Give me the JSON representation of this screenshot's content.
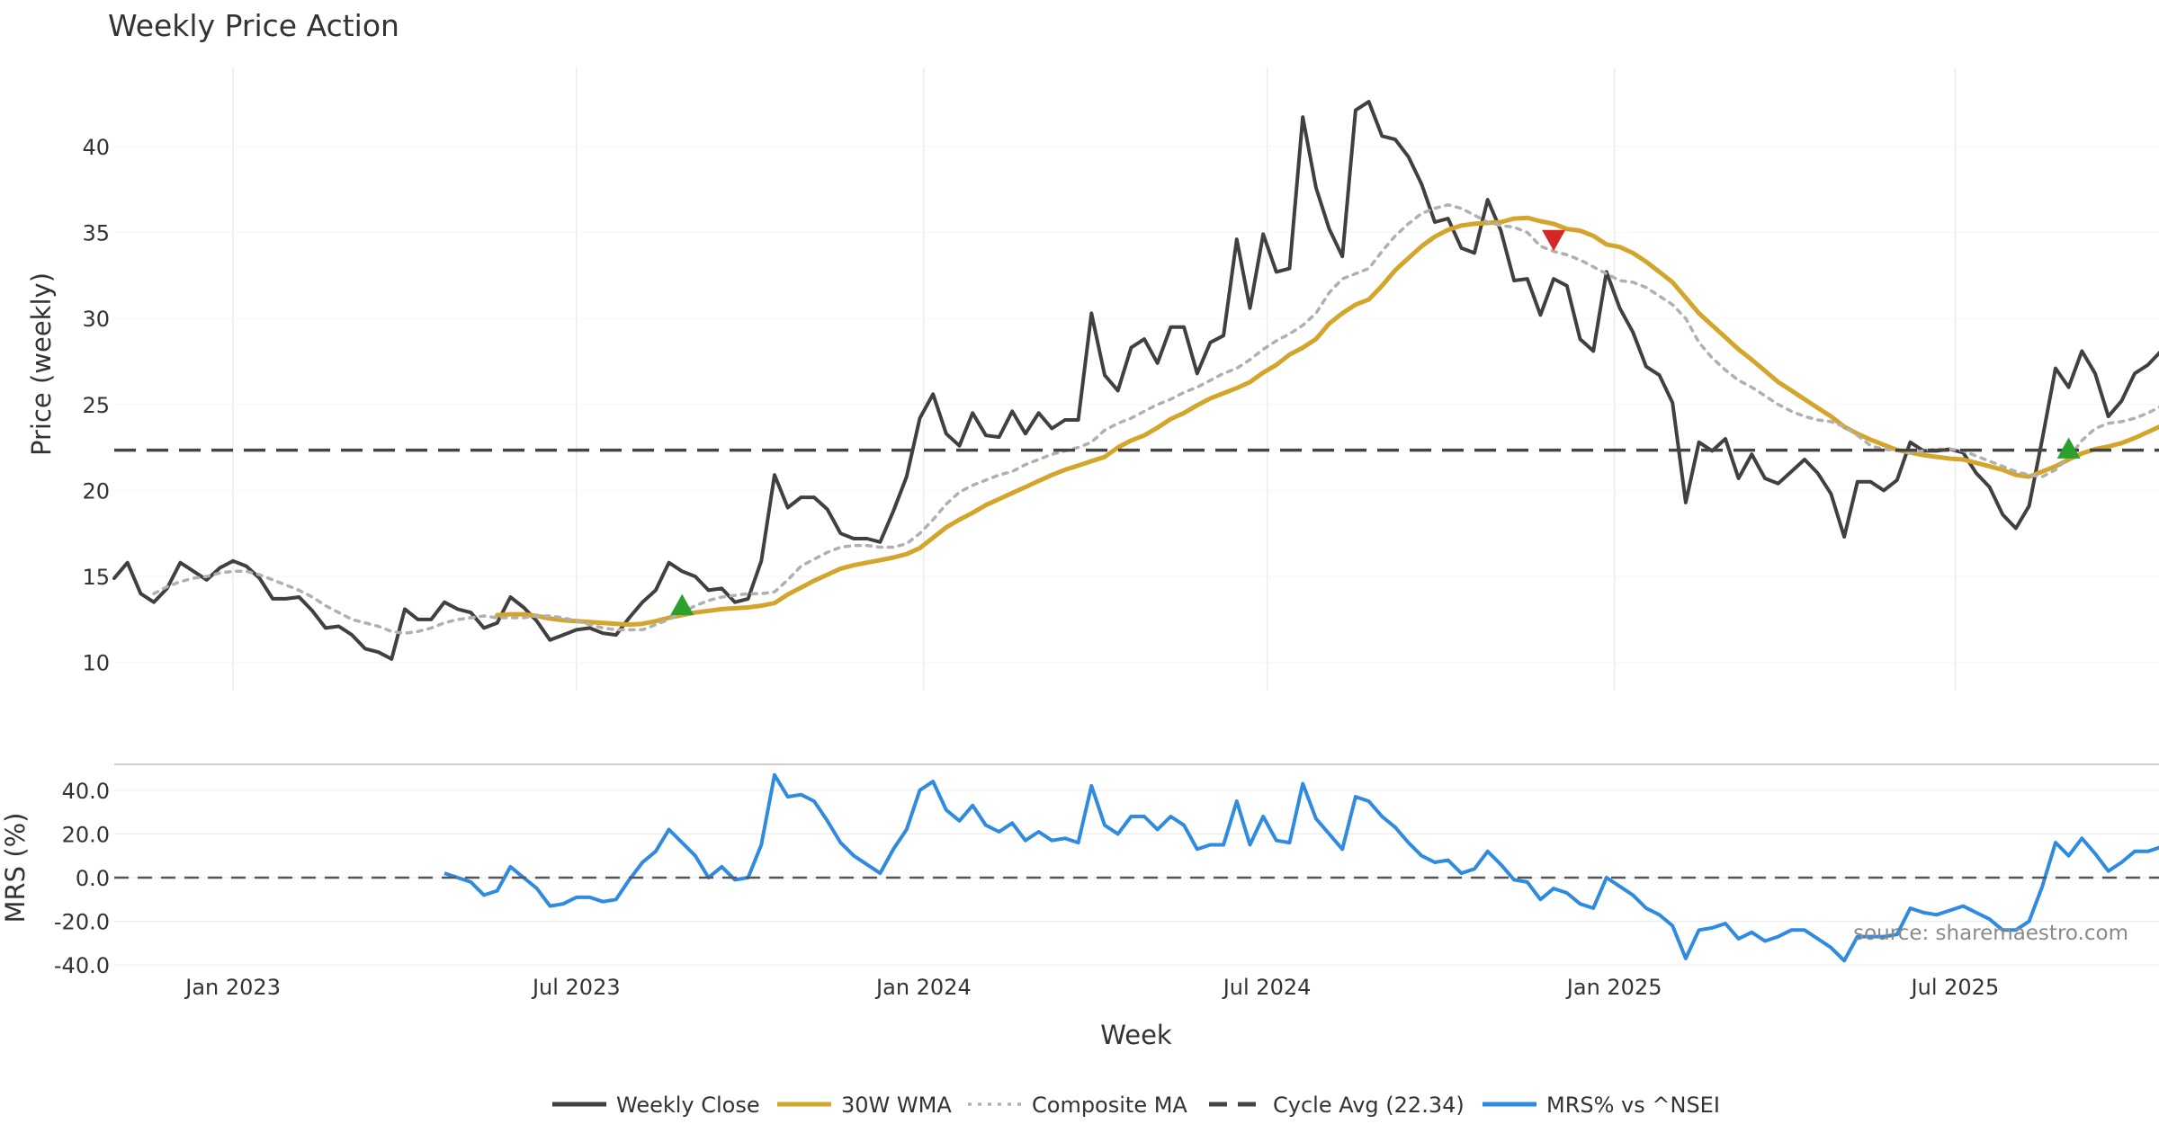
{
  "chart_data": [
    {
      "type": "line",
      "title": "Weekly Price Action",
      "xlabel": "",
      "ylabel": "Price (weekly)",
      "ylim": [
        8.3,
        44.5
      ],
      "yticks": [
        10,
        15,
        20,
        25,
        30,
        35,
        40
      ],
      "x_start_week": "2022-10-31",
      "series": [
        {
          "name": "Weekly Close",
          "color": "#404040",
          "style": "solid",
          "values": [
            14.9,
            15.8,
            14.0,
            13.5,
            14.3,
            15.8,
            15.3,
            14.8,
            15.5,
            15.9,
            15.6,
            14.9,
            13.7,
            13.7,
            13.8,
            13.0,
            12.0,
            12.1,
            11.6,
            10.8,
            10.6,
            10.2,
            13.1,
            12.5,
            12.5,
            13.5,
            13.1,
            12.9,
            12.0,
            12.3,
            13.8,
            13.2,
            12.4,
            11.3,
            11.6,
            11.9,
            12.0,
            11.7,
            11.6,
            12.6,
            13.5,
            14.2,
            15.8,
            15.3,
            15.0,
            14.2,
            14.3,
            13.5,
            13.7,
            15.9,
            20.9,
            19.0,
            19.6,
            19.6,
            18.9,
            17.5,
            17.2,
            17.2,
            17.0,
            18.8,
            20.8,
            24.2,
            25.6,
            23.3,
            22.6,
            24.5,
            23.2,
            23.1,
            24.6,
            23.3,
            24.5,
            23.6,
            24.1,
            24.1,
            30.3,
            26.7,
            25.8,
            28.3,
            28.8,
            27.4,
            29.5,
            29.5,
            26.8,
            28.6,
            29.0,
            34.6,
            30.6,
            34.9,
            32.7,
            32.9,
            41.7,
            37.6,
            35.2,
            33.6,
            42.1,
            42.6,
            40.6,
            40.4,
            39.4,
            37.8,
            35.6,
            35.8,
            34.1,
            33.8,
            36.9,
            35.1,
            32.2,
            32.3,
            30.2,
            32.3,
            31.9,
            28.8,
            28.1,
            32.7,
            30.6,
            29.2,
            27.2,
            26.7,
            25.1,
            19.3,
            22.8,
            22.3,
            23.0,
            20.7,
            22.1,
            20.7,
            20.4,
            21.1,
            21.8,
            21.0,
            19.8,
            17.3,
            20.5,
            20.5,
            20.0,
            20.6,
            22.8,
            22.3,
            22.3,
            22.4,
            22.2,
            21.0,
            20.2,
            18.6,
            17.8,
            19.1,
            23.0,
            27.1,
            26.0,
            28.1,
            26.8,
            24.3,
            25.2,
            26.8,
            27.3,
            28.1,
            30.3
          ]
        },
        {
          "name": "30W WMA",
          "color": "#d4a52b",
          "style": "solid",
          "start_index": 29,
          "values": [
            12.75,
            12.8,
            12.8,
            12.7,
            12.55,
            12.45,
            12.4,
            12.35,
            12.3,
            12.25,
            12.2,
            12.25,
            12.4,
            12.6,
            12.75,
            12.9,
            13.0,
            13.1,
            13.15,
            13.2,
            13.3,
            13.45,
            13.95,
            14.35,
            14.75,
            15.1,
            15.45,
            15.65,
            15.8,
            15.95,
            16.1,
            16.3,
            16.65,
            17.25,
            17.85,
            18.3,
            18.7,
            19.15,
            19.5,
            19.85,
            20.2,
            20.55,
            20.9,
            21.2,
            21.45,
            21.7,
            21.95,
            22.5,
            22.9,
            23.2,
            23.65,
            24.15,
            24.5,
            24.95,
            25.35,
            25.65,
            25.95,
            26.3,
            26.85,
            27.3,
            27.9,
            28.3,
            28.8,
            29.7,
            30.3,
            30.8,
            31.1,
            31.9,
            32.8,
            33.5,
            34.2,
            34.75,
            35.15,
            35.4,
            35.5,
            35.55,
            35.6,
            35.8,
            35.85,
            35.65,
            35.5,
            35.2,
            35.1,
            34.8,
            34.3,
            34.15,
            33.8,
            33.3,
            32.7,
            32.1,
            31.2,
            30.3,
            29.6,
            28.9,
            28.2,
            27.6,
            26.95,
            26.3,
            25.8,
            25.3,
            24.8,
            24.3,
            23.7,
            23.3,
            22.95,
            22.65,
            22.35,
            22.2,
            22.05,
            21.95,
            21.85,
            21.8,
            21.6,
            21.4,
            21.2,
            20.9,
            20.8,
            21.1,
            21.4,
            21.8,
            22.15,
            22.4,
            22.55,
            22.75,
            23.05,
            23.4,
            23.75,
            24.25
          ]
        },
        {
          "name": "Composite MA",
          "color": "#b0b0b0",
          "style": "dotted",
          "start_index": 3,
          "values": [
            14.0,
            14.4,
            14.7,
            14.9,
            15.0,
            15.2,
            15.3,
            15.3,
            15.1,
            14.8,
            14.5,
            14.2,
            13.8,
            13.3,
            12.9,
            12.5,
            12.3,
            12.1,
            11.8,
            11.7,
            11.8,
            12.0,
            12.3,
            12.5,
            12.6,
            12.7,
            12.6,
            12.6,
            12.6,
            12.7,
            12.7,
            12.6,
            12.4,
            12.2,
            12.0,
            11.9,
            11.9,
            11.9,
            12.2,
            12.5,
            12.9,
            13.3,
            13.6,
            13.8,
            13.9,
            14.0,
            14.0,
            14.1,
            14.8,
            15.6,
            16.0,
            16.4,
            16.7,
            16.8,
            16.8,
            16.7,
            16.7,
            16.9,
            17.5,
            18.3,
            19.2,
            19.9,
            20.3,
            20.6,
            20.9,
            21.1,
            21.5,
            21.8,
            22.1,
            22.3,
            22.5,
            22.8,
            23.5,
            23.9,
            24.2,
            24.6,
            25.0,
            25.3,
            25.7,
            26.0,
            26.4,
            26.8,
            27.1,
            27.6,
            28.2,
            28.7,
            29.1,
            29.6,
            30.3,
            31.5,
            32.3,
            32.6,
            32.9,
            33.9,
            34.8,
            35.5,
            36.1,
            36.4,
            36.6,
            36.4,
            36.0,
            35.6,
            35.4,
            35.3,
            35.0,
            34.2,
            33.9,
            33.7,
            33.4,
            33.0,
            32.6,
            32.2,
            32.1,
            31.8,
            31.3,
            30.8,
            30.0,
            28.6,
            27.7,
            27.0,
            26.4,
            26.0,
            25.5,
            25.0,
            24.6,
            24.3,
            24.1,
            24.0,
            23.7,
            23.2,
            22.6,
            22.4,
            22.3,
            22.2,
            22.3,
            22.4,
            22.4,
            22.3,
            22.0,
            21.7,
            21.4,
            21.1,
            20.9,
            20.8,
            21.2,
            21.9,
            22.9,
            23.6,
            23.9,
            24.0,
            24.2,
            24.5,
            24.9,
            25.3,
            25.7
          ]
        },
        {
          "name": "Cycle Avg (22.34)",
          "color": "#444444",
          "style": "dashed",
          "value": 22.34
        }
      ],
      "markers": [
        {
          "type": "buy",
          "shape": "triangle-up",
          "color": "#2ca02c",
          "index": 43,
          "value": 13.3
        },
        {
          "type": "sell",
          "shape": "triangle-down",
          "color": "#d62728",
          "index": 109,
          "value": 34.6
        },
        {
          "type": "buy",
          "shape": "triangle-up",
          "color": "#2ca02c",
          "index": 148,
          "value": 22.4
        }
      ]
    },
    {
      "type": "line",
      "title": "",
      "xlabel": "Week",
      "ylabel": "MRS (%)",
      "ylim": [
        -40,
        50
      ],
      "yticks": [
        "-40.0",
        "-20.0",
        "0.0",
        "20.0",
        "40.0"
      ],
      "xticks": [
        {
          "label": "Jan 2023",
          "index": 9
        },
        {
          "label": "Jul 2023",
          "index": 35
        },
        {
          "label": "Jan 2024",
          "index": 61.3
        },
        {
          "label": "Jul 2024",
          "index": 87.3
        },
        {
          "label": "Jan 2025",
          "index": 113.6
        },
        {
          "label": "Jul 2025",
          "index": 139.4
        }
      ],
      "series": [
        {
          "name": "MRS% vs ^NSEI",
          "color": "#2e8be0",
          "style": "solid",
          "start_index": 25,
          "values": [
            2,
            0,
            -2,
            -8,
            -6,
            5,
            0,
            -5,
            -13,
            -12,
            -9,
            -9,
            -11,
            -10,
            -1,
            7,
            12,
            22,
            16,
            10,
            0,
            5,
            -1,
            0,
            15,
            47,
            37,
            38,
            35,
            26,
            16,
            10,
            6,
            2,
            13,
            22,
            40,
            44,
            31,
            26,
            33,
            24,
            21,
            25,
            17,
            21,
            17,
            18,
            16,
            42,
            24,
            20,
            28,
            28,
            22,
            28,
            24,
            13,
            15,
            15,
            35,
            15,
            28,
            17,
            16,
            43,
            27,
            20,
            13,
            37,
            35,
            28,
            23,
            16,
            10,
            7,
            8,
            2,
            4,
            12,
            6,
            -1,
            -2,
            -10,
            -5,
            -7,
            -12,
            -14,
            0,
            -4,
            -8,
            -14,
            -17,
            -22,
            -37,
            -24,
            -23,
            -21,
            -28,
            -25,
            -29,
            -27,
            -24,
            -24,
            -28,
            -32,
            -38,
            -27,
            -27,
            -27,
            -26,
            -14,
            -16,
            -17,
            -15,
            -13,
            -16,
            -19,
            -24,
            -24,
            -20,
            -4,
            16,
            10,
            18,
            11,
            3,
            7,
            12,
            12,
            14,
            22
          ]
        },
        {
          "name": "Zero line",
          "color": "#555555",
          "style": "dashed",
          "value": 0
        }
      ]
    }
  ],
  "legend": [
    {
      "label": "Weekly Close",
      "style": "solid",
      "color": "#404040"
    },
    {
      "label": "30W WMA",
      "style": "solid",
      "color": "#d4a52b"
    },
    {
      "label": "Composite MA",
      "style": "dotted",
      "color": "#b0b0b0"
    },
    {
      "label": "Cycle Avg (22.34)",
      "style": "dashed",
      "color": "#444444"
    },
    {
      "label": "MRS% vs ^NSEI",
      "style": "solid",
      "color": "#2e8be0"
    }
  ],
  "source_text": "source: sharemaestro.com"
}
